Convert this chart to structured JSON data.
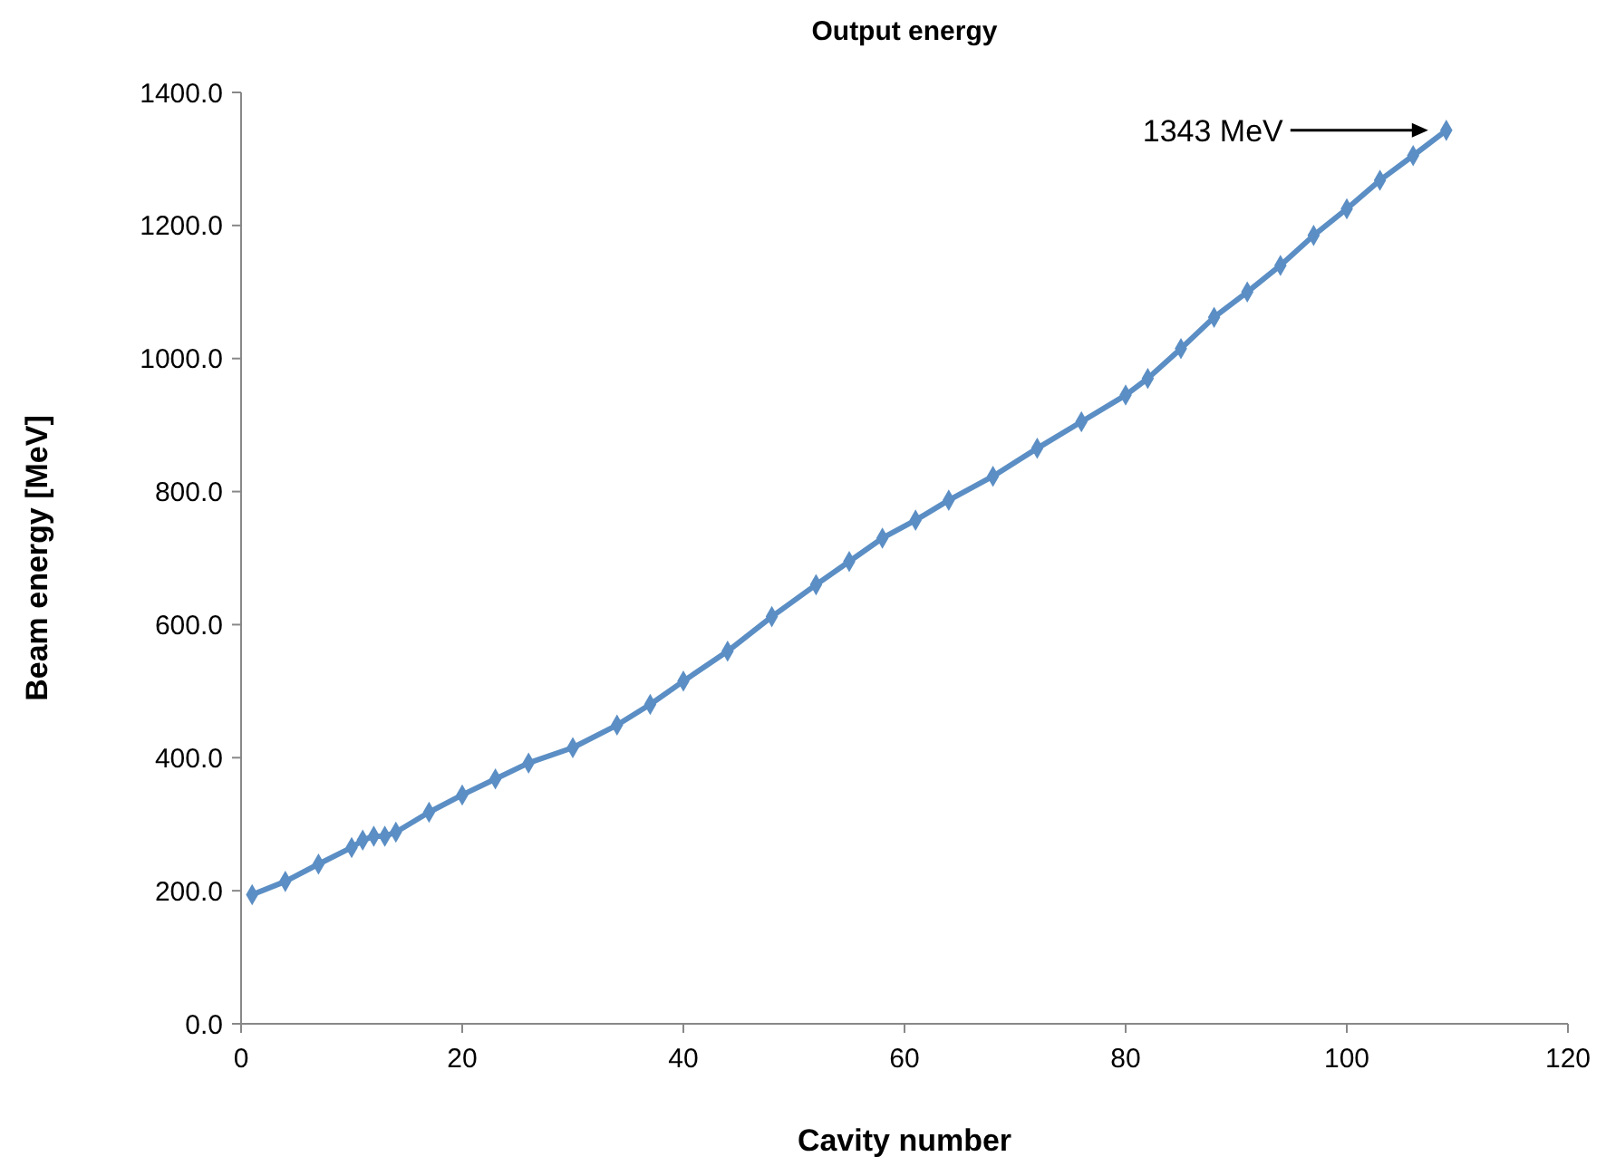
{
  "chart_data": {
    "type": "line",
    "title": "Output energy",
    "xlabel": "Cavity number",
    "ylabel": "Beam energy [MeV]",
    "x": [
      1,
      4,
      7,
      10,
      11,
      12,
      13,
      14,
      17,
      20,
      23,
      26,
      30,
      34,
      37,
      40,
      44,
      48,
      52,
      55,
      58,
      61,
      64,
      68,
      72,
      76,
      80,
      82,
      85,
      88,
      91,
      94,
      97,
      100,
      103,
      106,
      109
    ],
    "series": [
      {
        "color": "#5b8ec4",
        "values": [
          194,
          214,
          240,
          265,
          276,
          282,
          282,
          288,
          318,
          344,
          368,
          392,
          415,
          449,
          480,
          515,
          560,
          612,
          660,
          695,
          730,
          757,
          787,
          823,
          865,
          905,
          945,
          970,
          1015,
          1062,
          1100,
          1140,
          1185,
          1225,
          1268,
          1305,
          1343
        ]
      }
    ],
    "xlim": [
      0,
      120
    ],
    "xticks": [
      0,
      20,
      40,
      60,
      80,
      100,
      120
    ],
    "ylim": [
      0,
      1400
    ],
    "yticks": [
      {
        "value": 0,
        "label": "0.0"
      },
      {
        "value": 200,
        "label": "200.0"
      },
      {
        "value": 400,
        "label": "400.0"
      },
      {
        "value": 600,
        "label": "600.0"
      },
      {
        "value": 800,
        "label": "800.0"
      },
      {
        "value": 1000,
        "label": "1000.0"
      },
      {
        "value": 1200,
        "label": "1200.0"
      },
      {
        "value": 1400,
        "label": "1400.0"
      }
    ],
    "marker": "diamond",
    "line_style": "solid",
    "annotations": [
      "1343 MeV"
    ]
  }
}
